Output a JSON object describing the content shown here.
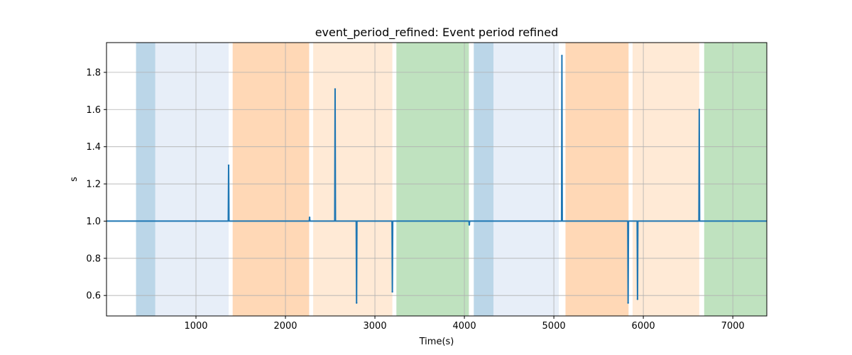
{
  "chart_data": {
    "type": "line",
    "title": "event_period_refined: Event period refined",
    "xlabel": "Time(s)",
    "ylabel": "s",
    "xlim": [
      0,
      7380
    ],
    "ylim": [
      0.49,
      1.96
    ],
    "xticks": [
      1000,
      2000,
      3000,
      4000,
      5000,
      6000,
      7000
    ],
    "yticks": [
      0.6,
      0.8,
      1.0,
      1.2,
      1.4,
      1.6,
      1.8
    ],
    "grid": true,
    "line_color": "#1f77b4",
    "baseline": 1.0,
    "spikes": [
      {
        "x": 1365,
        "y": 1.3
      },
      {
        "x": 2270,
        "y": 1.02
      },
      {
        "x": 2555,
        "y": 1.71
      },
      {
        "x": 2795,
        "y": 0.56
      },
      {
        "x": 3195,
        "y": 0.62
      },
      {
        "x": 4055,
        "y": 0.98
      },
      {
        "x": 5090,
        "y": 1.89
      },
      {
        "x": 5830,
        "y": 0.56
      },
      {
        "x": 5935,
        "y": 0.58
      },
      {
        "x": 6625,
        "y": 1.6
      }
    ],
    "shaded_regions": [
      {
        "x0": 330,
        "x1": 545,
        "color": "#1f77b4",
        "alpha": 0.3
      },
      {
        "x0": 545,
        "x1": 1365,
        "color": "#aec7e8",
        "alpha": 0.3
      },
      {
        "x0": 1410,
        "x1": 2265,
        "color": "#ff7f0e",
        "alpha": 0.3
      },
      {
        "x0": 2310,
        "x1": 3195,
        "color": "#ffbb78",
        "alpha": 0.3
      },
      {
        "x0": 3240,
        "x1": 4050,
        "color": "#2ca02c",
        "alpha": 0.3
      },
      {
        "x0": 4105,
        "x1": 4325,
        "color": "#1f77b4",
        "alpha": 0.3
      },
      {
        "x0": 4325,
        "x1": 5055,
        "color": "#aec7e8",
        "alpha": 0.3
      },
      {
        "x0": 5130,
        "x1": 5835,
        "color": "#ff7f0e",
        "alpha": 0.3
      },
      {
        "x0": 5880,
        "x1": 6625,
        "color": "#ffbb78",
        "alpha": 0.3
      },
      {
        "x0": 6680,
        "x1": 7380,
        "color": "#2ca02c",
        "alpha": 0.3
      }
    ]
  }
}
